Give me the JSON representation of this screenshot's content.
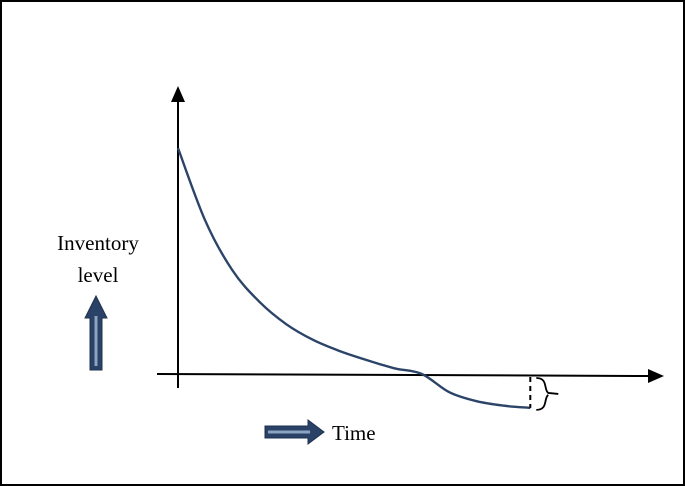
{
  "chart_data": {
    "type": "line",
    "title": "",
    "xlabel": "Time",
    "ylabel_line1": "Inventory",
    "ylabel_line2": "level",
    "x": [
      0,
      1,
      2,
      3,
      4,
      5,
      6,
      7,
      8,
      9,
      10,
      11,
      12,
      13
    ],
    "series": [
      {
        "values": [
          100,
          68,
          46,
          32,
          22,
          15,
          10,
          6,
          2.5,
          0,
          -8,
          -12,
          -14,
          -15
        ]
      }
    ],
    "shortage_x": 13,
    "shortage_value": -15,
    "grid": false,
    "ticks": false,
    "legend": "none",
    "colors": {
      "curve": "#2b4468",
      "axes": "#000000",
      "arrows": "#2a4265",
      "arrow_highlight": "#8da3c4",
      "frame": "#000000"
    },
    "icons": {
      "y_direction": "up-arrow-icon",
      "x_direction": "right-arrow-icon",
      "bracket": "curly-brace-icon"
    }
  }
}
